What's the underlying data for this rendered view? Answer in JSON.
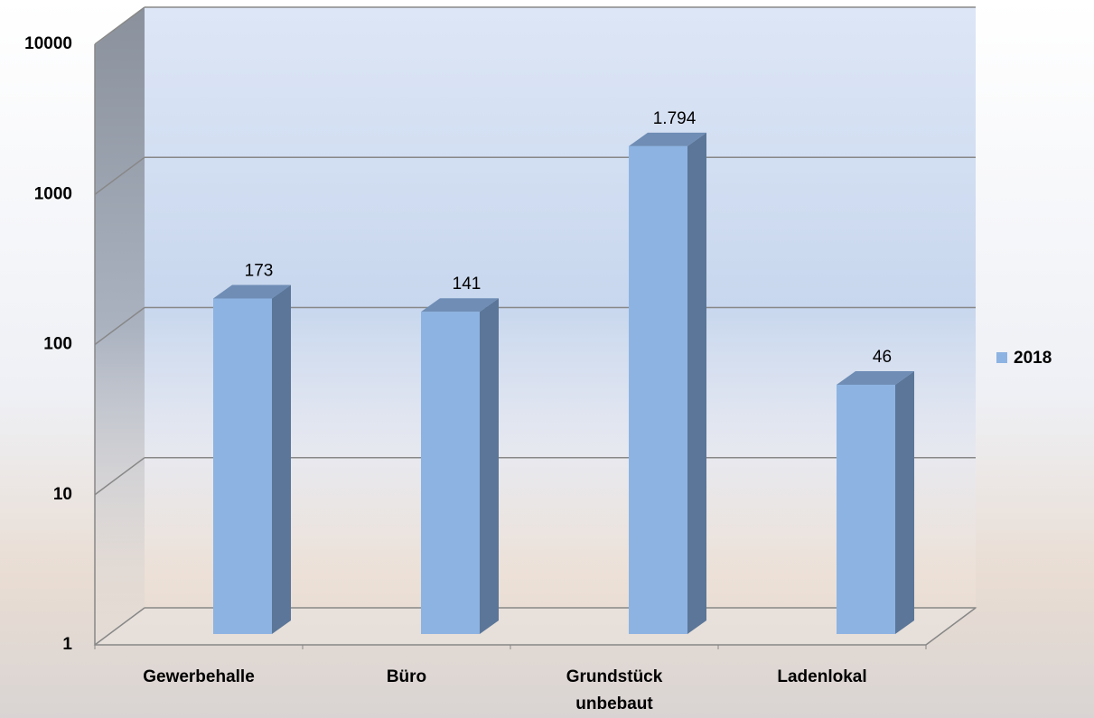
{
  "chart_data": {
    "type": "bar",
    "log_scale": true,
    "categories": [
      "Gewerbehalle",
      "Büro",
      "Grundstück unbebaut",
      "Ladenlokal"
    ],
    "series": [
      {
        "name": "2018",
        "color": "#8db3e2",
        "values": [
          173,
          141,
          1794,
          46
        ],
        "value_labels": [
          "173",
          "141",
          "1.794",
          "46"
        ]
      }
    ],
    "ylim": [
      1,
      10000
    ],
    "yticks": [
      1,
      10,
      100,
      1000,
      10000
    ],
    "grid": true,
    "legend": "right"
  }
}
